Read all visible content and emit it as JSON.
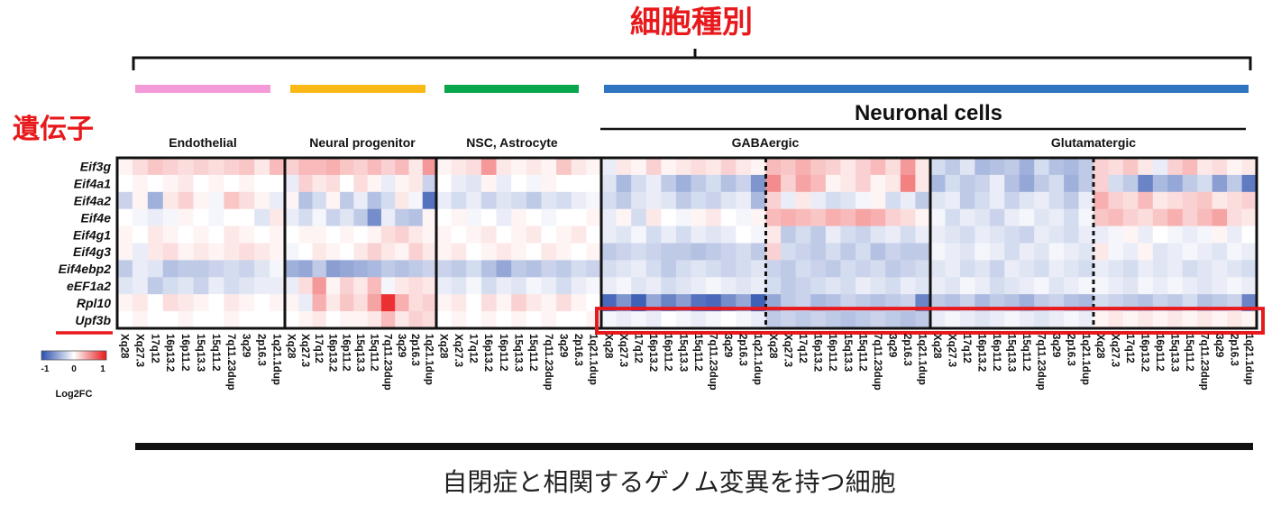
{
  "title": "細胞種別",
  "gene_axis_label": "遺伝子",
  "bottom_label": "自閉症と相関するゲノム変異を持つ細胞",
  "super_group": "Neuronal cells",
  "colorbar": {
    "label": "Log2FC",
    "ticks": [
      "-1",
      "0",
      "1"
    ]
  },
  "colors": {
    "accent_red": "#e8191c",
    "negative": "#2a4fae",
    "positive": "#e8191c"
  },
  "chart_data": {
    "type": "heatmap",
    "title": "細胞種別",
    "xlabel": "自閉症と相関するゲノム変異を持つ細胞",
    "ylabel": "遺伝子",
    "genes": [
      "Eif3g",
      "Eif4a1",
      "Eif4a2",
      "Eif4e",
      "Eif4g1",
      "Eif4g3",
      "Eif4ebp2",
      "eEF1a2",
      "Rpl10",
      "Upf3b"
    ],
    "highlighted_gene": "Upf3b",
    "value_range": [
      -1,
      1
    ],
    "groups": [
      {
        "name": "Endothelial",
        "bar_color": "#f49ad9",
        "columns": [
          "Xq28",
          "Xq27.3",
          "17q12",
          "16p13.2",
          "16p11.2",
          "15q13.3",
          "15q11.2",
          "7q11.23dup",
          "3q29",
          "2p16.3",
          "1q21.1dup"
        ],
        "values": [
          [
            0.05,
            0.15,
            0.25,
            0.2,
            0.15,
            0.2,
            0.15,
            0.2,
            0.25,
            0.1,
            0.3
          ],
          [
            0.0,
            0.05,
            0.0,
            0.05,
            0.1,
            0.0,
            0.05,
            0.0,
            0.05,
            0.0,
            0.0
          ],
          [
            -0.25,
            0.05,
            -0.45,
            0.1,
            0.2,
            0.05,
            -0.05,
            0.25,
            0.15,
            0.05,
            -0.1
          ],
          [
            0.0,
            -0.05,
            -0.1,
            -0.05,
            0.05,
            0.0,
            -0.05,
            0.0,
            0.0,
            -0.15,
            0.1
          ],
          [
            0.05,
            0.0,
            0.1,
            0.05,
            0.0,
            0.05,
            0.0,
            0.1,
            0.05,
            0.0,
            0.05
          ],
          [
            0.05,
            -0.1,
            0.1,
            0.15,
            0.05,
            0.1,
            0.05,
            0.1,
            0.15,
            0.1,
            0.05
          ],
          [
            -0.3,
            -0.1,
            -0.15,
            -0.35,
            -0.3,
            -0.3,
            -0.25,
            -0.2,
            -0.25,
            -0.15,
            -0.05
          ],
          [
            -0.15,
            -0.1,
            -0.3,
            -0.2,
            -0.15,
            -0.25,
            -0.1,
            -0.2,
            -0.15,
            -0.1,
            -0.1
          ],
          [
            0.05,
            0.1,
            0.0,
            0.15,
            0.1,
            0.05,
            0.0,
            0.1,
            0.05,
            0.0,
            0.05
          ],
          [
            0.0,
            0.05,
            0.0,
            0.0,
            0.05,
            0.0,
            0.0,
            0.05,
            0.0,
            0.0,
            0.0
          ]
        ]
      },
      {
        "name": "Neural progenitor",
        "bar_color": "#fbb917",
        "columns": [
          "Xq28",
          "Xq27.3",
          "17q12",
          "16p13.2",
          "16p11.2",
          "15q13.3",
          "15q11.2",
          "7q11.23dup",
          "3q29",
          "2p16.3",
          "1q21.1dup"
        ],
        "values": [
          [
            0.2,
            0.3,
            0.3,
            0.35,
            0.25,
            0.2,
            0.3,
            0.2,
            0.3,
            0.1,
            0.45
          ],
          [
            -0.1,
            0.2,
            0.1,
            0.15,
            0.0,
            0.15,
            0.05,
            -0.1,
            0.05,
            0.1,
            -0.25
          ],
          [
            0.05,
            -0.35,
            -0.2,
            0.05,
            -0.3,
            -0.1,
            -0.35,
            -0.2,
            0.1,
            -0.05,
            -0.8
          ],
          [
            -0.1,
            -0.2,
            -0.05,
            -0.25,
            -0.15,
            -0.3,
            -0.65,
            -0.1,
            -0.3,
            -0.35,
            0.05
          ],
          [
            0.0,
            0.05,
            0.05,
            0.0,
            0.05,
            0.0,
            0.05,
            0.15,
            0.2,
            0.1,
            0.05
          ],
          [
            -0.05,
            0.0,
            0.1,
            0.05,
            0.0,
            0.1,
            0.2,
            0.1,
            0.05,
            0.2,
            0.1
          ],
          [
            -0.45,
            -0.5,
            -0.3,
            -0.55,
            -0.5,
            -0.45,
            -0.4,
            -0.3,
            -0.35,
            -0.3,
            -0.25
          ],
          [
            -0.1,
            0.15,
            0.45,
            0.05,
            0.2,
            0.1,
            0.3,
            -0.05,
            0.1,
            0.15,
            0.1
          ],
          [
            0.05,
            -0.1,
            0.35,
            0.1,
            0.25,
            0.15,
            0.4,
            0.9,
            0.35,
            0.15,
            0.2
          ],
          [
            0.0,
            0.05,
            0.1,
            0.0,
            0.05,
            0.05,
            0.1,
            0.3,
            0.1,
            0.2,
            0.15
          ]
        ]
      },
      {
        "name": "NSC, Astrocyte",
        "bar_color": "#0aa64b",
        "columns": [
          "Xq28",
          "Xq27.3",
          "17q12",
          "16p13.2",
          "16p11.2",
          "15q13.3",
          "15q11.2",
          "7q11.23dup",
          "3q29",
          "2p16.3",
          "1q21.1dup"
        ],
        "values": [
          [
            0.05,
            0.1,
            0.15,
            0.45,
            0.1,
            0.05,
            0.1,
            0.05,
            0.25,
            0.1,
            0.05
          ],
          [
            0.0,
            -0.1,
            -0.15,
            0.05,
            -0.1,
            0.0,
            -0.05,
            0.05,
            0.0,
            0.0,
            0.0
          ],
          [
            -0.1,
            -0.2,
            -0.1,
            -0.25,
            -0.15,
            -0.2,
            -0.3,
            -0.15,
            -0.2,
            -0.1,
            -0.05
          ],
          [
            0.0,
            0.05,
            -0.05,
            0.0,
            -0.1,
            0.05,
            0.0,
            -0.05,
            0.0,
            0.0,
            0.05
          ],
          [
            0.05,
            0.0,
            0.05,
            0.1,
            0.0,
            0.05,
            0.1,
            0.0,
            0.05,
            0.1,
            0.0
          ],
          [
            0.05,
            0.1,
            0.0,
            0.05,
            0.1,
            0.05,
            0.0,
            0.1,
            0.05,
            0.0,
            0.05
          ],
          [
            -0.25,
            -0.3,
            -0.2,
            -0.35,
            -0.5,
            -0.3,
            -0.35,
            -0.25,
            -0.3,
            -0.2,
            -0.25
          ],
          [
            -0.1,
            -0.15,
            -0.05,
            -0.2,
            -0.1,
            -0.15,
            -0.05,
            -0.1,
            -0.2,
            -0.1,
            -0.05
          ],
          [
            0.05,
            0.1,
            0.0,
            0.15,
            0.05,
            0.2,
            0.1,
            0.05,
            0.15,
            0.05,
            0.0
          ],
          [
            0.0,
            0.05,
            0.0,
            0.05,
            0.0,
            0.05,
            0.0,
            0.05,
            0.0,
            0.0,
            0.05
          ]
        ]
      },
      {
        "name": "GABAergic",
        "bar_color": "#2f74c0",
        "columns": [
          "Xq28",
          "Xq27.3",
          "17q12",
          "16p13.2",
          "16p11.2",
          "15q13.3",
          "15q11.2",
          "7q11.23dup",
          "3q29",
          "2p16.3",
          "1q21.1dup",
          "Xq28",
          "Xq27.3",
          "17q12",
          "16p13.2",
          "16p11.2",
          "15q13.3",
          "15q11.2",
          "7q11.23dup",
          "3q29",
          "2p16.3",
          "1q21.1dup"
        ],
        "values": [
          [
            -0.1,
            0.1,
            0.05,
            0.2,
            0.05,
            0.1,
            0.15,
            0.1,
            0.2,
            0.1,
            0.05,
            0.3,
            0.25,
            0.35,
            0.25,
            0.2,
            0.1,
            0.2,
            0.3,
            0.15,
            0.45,
            0.1
          ],
          [
            -0.15,
            -0.4,
            -0.2,
            -0.1,
            -0.3,
            -0.45,
            -0.3,
            -0.2,
            -0.35,
            -0.25,
            -0.6,
            0.5,
            0.2,
            0.4,
            0.3,
            0.05,
            0.1,
            0.2,
            0.05,
            0.1,
            0.55,
            0.1
          ],
          [
            -0.2,
            -0.3,
            -0.15,
            -0.1,
            -0.15,
            -0.3,
            -0.2,
            -0.25,
            -0.15,
            -0.1,
            -0.4,
            0.2,
            -0.1,
            0.1,
            -0.1,
            -0.2,
            -0.15,
            -0.05,
            0.05,
            -0.2,
            -0.1,
            -0.3
          ],
          [
            -0.1,
            0.05,
            -0.2,
            0.1,
            0.0,
            -0.05,
            0.05,
            0.1,
            0.0,
            -0.05,
            0.05,
            0.3,
            0.35,
            0.3,
            0.25,
            0.35,
            0.3,
            0.4,
            0.35,
            0.2,
            0.15,
            0.05
          ],
          [
            -0.1,
            -0.15,
            -0.05,
            -0.2,
            -0.1,
            -0.2,
            -0.1,
            -0.15,
            -0.1,
            0.0,
            -0.05,
            0.1,
            -0.3,
            -0.2,
            -0.3,
            -0.1,
            -0.2,
            -0.25,
            -0.15,
            -0.1,
            -0.2,
            -0.1
          ],
          [
            -0.3,
            -0.25,
            -0.2,
            -0.25,
            -0.3,
            -0.3,
            -0.35,
            -0.3,
            -0.25,
            -0.2,
            -0.3,
            0.2,
            -0.2,
            -0.25,
            -0.3,
            -0.2,
            -0.3,
            -0.2,
            -0.35,
            -0.25,
            -0.3,
            -0.3
          ],
          [
            -0.2,
            -0.15,
            -0.1,
            -0.2,
            -0.3,
            -0.2,
            -0.15,
            -0.2,
            -0.25,
            -0.2,
            -0.15,
            -0.25,
            -0.3,
            -0.2,
            -0.25,
            -0.3,
            -0.2,
            -0.25,
            -0.2,
            -0.3,
            -0.25,
            -0.2
          ],
          [
            -0.1,
            -0.05,
            -0.15,
            -0.1,
            -0.2,
            -0.15,
            -0.1,
            -0.05,
            -0.1,
            -0.15,
            -0.1,
            -0.2,
            -0.3,
            -0.25,
            -0.2,
            -0.15,
            -0.2,
            -0.1,
            -0.15,
            -0.2,
            -0.1,
            -0.15
          ],
          [
            -0.85,
            -0.6,
            -0.9,
            -0.5,
            -0.7,
            -0.55,
            -0.8,
            -0.85,
            -0.65,
            -0.5,
            -0.9,
            -0.5,
            -0.3,
            -0.25,
            -0.4,
            -0.35,
            -0.25,
            -0.3,
            -0.35,
            -0.3,
            -0.25,
            -0.7
          ],
          [
            -0.05,
            -0.1,
            -0.05,
            -0.1,
            0.0,
            -0.05,
            -0.1,
            -0.05,
            0.0,
            -0.05,
            -0.1,
            -0.3,
            -0.25,
            -0.3,
            -0.25,
            -0.3,
            -0.35,
            -0.3,
            -0.25,
            -0.3,
            -0.35,
            -0.3
          ]
        ]
      },
      {
        "name": "Glutamatergic",
        "bar_color": "#2f74c0",
        "columns": [
          "Xq28",
          "Xq27.3",
          "17q12",
          "16p13.2",
          "16p11.2",
          "15q13.3",
          "15q11.2",
          "7q11.23dup",
          "3q29",
          "2p16.3",
          "1q21.1dup",
          "Xq28",
          "Xq27.3",
          "17q12",
          "16p13.2",
          "16p11.2",
          "15q13.3",
          "15q11.2",
          "7q11.23dup",
          "3q29",
          "2p16.3",
          "1q21.1dup"
        ],
        "values": [
          [
            -0.2,
            -0.3,
            -0.15,
            -0.4,
            -0.35,
            -0.3,
            -0.45,
            -0.2,
            -0.35,
            -0.4,
            -0.3,
            0.2,
            0.15,
            0.25,
            0.1,
            -0.1,
            0.2,
            0.3,
            0.1,
            0.15,
            0.05,
            0.1
          ],
          [
            -0.4,
            -0.2,
            -0.3,
            -0.25,
            -0.1,
            -0.35,
            -0.5,
            -0.3,
            -0.2,
            -0.45,
            -0.3,
            0.2,
            -0.2,
            -0.3,
            -0.7,
            -0.4,
            -0.5,
            -0.3,
            -0.2,
            -0.55,
            -0.3,
            -0.75
          ],
          [
            -0.15,
            -0.1,
            -0.3,
            -0.2,
            -0.1,
            -0.25,
            -0.15,
            -0.1,
            -0.2,
            -0.3,
            -0.1,
            0.35,
            0.2,
            0.15,
            0.3,
            0.1,
            0.15,
            0.2,
            0.25,
            0.1,
            0.15,
            0.2
          ],
          [
            -0.05,
            -0.2,
            -0.1,
            -0.15,
            -0.25,
            -0.1,
            -0.05,
            -0.15,
            -0.1,
            -0.2,
            -0.05,
            0.25,
            0.3,
            0.2,
            0.15,
            0.25,
            0.35,
            0.2,
            0.3,
            0.4,
            0.15,
            0.1
          ],
          [
            -0.1,
            -0.15,
            -0.2,
            -0.1,
            -0.15,
            -0.2,
            -0.25,
            -0.1,
            -0.15,
            -0.2,
            -0.1,
            -0.1,
            -0.05,
            0.05,
            -0.1,
            0.0,
            -0.05,
            -0.1,
            -0.05,
            0.05,
            -0.1,
            0.0
          ],
          [
            -0.05,
            -0.1,
            -0.15,
            -0.05,
            -0.1,
            -0.2,
            -0.1,
            -0.15,
            -0.05,
            -0.1,
            -0.15,
            0.1,
            -0.05,
            -0.1,
            0.05,
            -0.15,
            -0.1,
            -0.05,
            -0.1,
            -0.15,
            -0.05,
            -0.1
          ],
          [
            -0.15,
            -0.1,
            -0.2,
            -0.15,
            -0.25,
            -0.1,
            -0.15,
            -0.2,
            -0.1,
            -0.15,
            -0.2,
            -0.1,
            -0.15,
            -0.2,
            -0.1,
            -0.15,
            -0.1,
            -0.2,
            -0.15,
            -0.1,
            -0.15,
            -0.2
          ],
          [
            -0.1,
            -0.15,
            -0.05,
            -0.1,
            -0.2,
            -0.15,
            -0.1,
            -0.05,
            -0.15,
            -0.1,
            -0.05,
            -0.05,
            -0.1,
            -0.15,
            -0.05,
            -0.1,
            -0.05,
            -0.1,
            -0.15,
            -0.1,
            -0.05,
            -0.1
          ],
          [
            -0.3,
            -0.35,
            -0.25,
            -0.4,
            -0.3,
            -0.35,
            -0.45,
            -0.3,
            -0.25,
            -0.35,
            -0.4,
            -0.2,
            -0.25,
            -0.3,
            -0.35,
            -0.25,
            -0.3,
            -0.2,
            -0.35,
            -0.3,
            -0.25,
            -0.7
          ],
          [
            -0.1,
            -0.05,
            -0.1,
            -0.15,
            -0.1,
            -0.05,
            -0.1,
            -0.15,
            -0.1,
            -0.05,
            -0.1,
            0.05,
            0.1,
            0.05,
            0.1,
            0.05,
            0.1,
            0.05,
            0.1,
            0.05,
            0.1,
            0.05
          ]
        ]
      }
    ]
  }
}
